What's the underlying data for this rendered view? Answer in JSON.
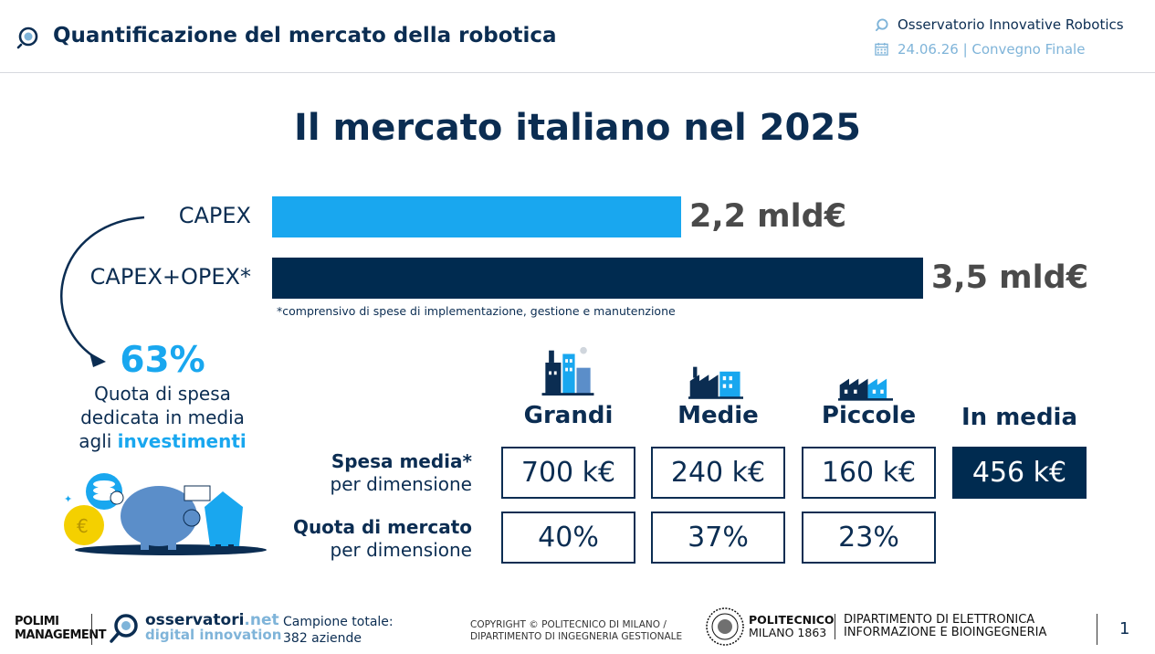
{
  "header": {
    "title": "Quantificazione del mercato della robotica",
    "org": "Osservatorio Innovative Robotics",
    "date_event": "24.06.26 | Convegno Finale"
  },
  "main_title": "Il mercato italiano nel 2025",
  "bars": {
    "capex": {
      "label": "CAPEX",
      "value_text": "2,2 mld€",
      "value": 2.2
    },
    "capex_opex": {
      "label": "CAPEX+OPEX*",
      "value_text": "3,5 mld€",
      "value": 3.5
    },
    "max_value": 3.5,
    "note": "*comprensivo di spese di implementazione, gestione e manutenzione"
  },
  "share": {
    "percent": "63%",
    "line1": "Quota di spesa",
    "line2": "dedicata in media",
    "line3_prefix": "agli ",
    "line3_highlight": "investimenti"
  },
  "table": {
    "columns": [
      "Grandi",
      "Medie",
      "Piccole",
      "In media"
    ],
    "rows": [
      {
        "label_bold": "Spesa media*",
        "label_sub": "per dimensione",
        "cells": [
          "700 k€",
          "240 k€",
          "160 k€",
          "456 k€"
        ]
      },
      {
        "label_bold": "Quota di mercato",
        "label_sub": "per dimensione",
        "cells": [
          "40%",
          "37%",
          "23%"
        ]
      }
    ]
  },
  "footer": {
    "polimi_line1": "POLIMI",
    "polimi_line2": "MANAGEMENT",
    "osserv_line1": "osservatori",
    "osserv_line1_suffix": ".net",
    "osserv_line2": "digital innovation",
    "campione_line1": "Campione totale:",
    "campione_line2": "382 aziende",
    "copyright_line1": "COPYRIGHT © POLITECNICO DI MILANO /",
    "copyright_line2": "DIPARTIMENTO DI INGEGNERIA GESTIONALE",
    "politecnico_line1": "POLITECNICO",
    "politecnico_line2": "MILANO 1863",
    "dept_line1": "DIPARTIMENTO DI ELETTRONICA",
    "dept_line2": "INFORMAZIONE E BIOINGEGNERIA",
    "page": "1"
  },
  "colors": {
    "navy": "#002b50",
    "blue": "#19a7ef",
    "text": "#0b2d52",
    "light_blue": "#7fb4d9"
  }
}
